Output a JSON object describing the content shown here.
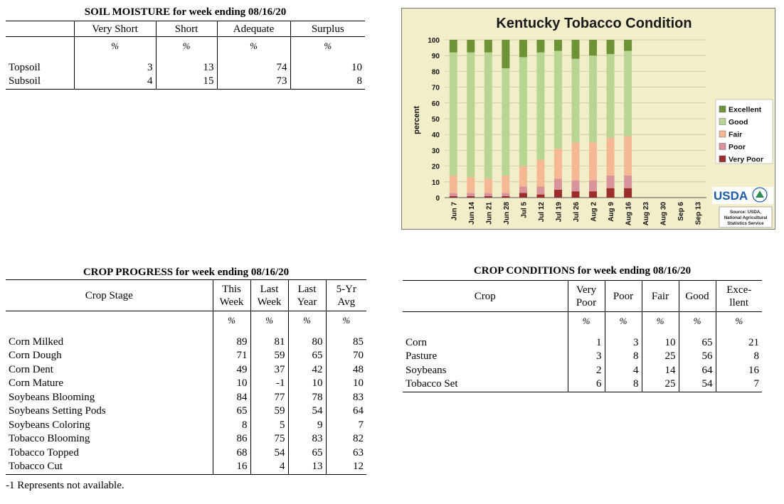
{
  "soil": {
    "title": "SOIL MOISTURE for week ending 08/16/20",
    "headers": [
      "Very Short",
      "Short",
      "Adequate",
      "Surplus"
    ],
    "unit": "%",
    "rows": [
      {
        "label": "Topsoil",
        "values": [
          "3",
          "13",
          "74",
          "10"
        ]
      },
      {
        "label": "Subsoil",
        "values": [
          "4",
          "15",
          "73",
          "8"
        ]
      }
    ]
  },
  "progress": {
    "title": "CROP PROGRESS for week ending 08/16/20",
    "stage_header": "Crop Stage",
    "headers": [
      [
        "This",
        "Week"
      ],
      [
        "Last",
        "Week"
      ],
      [
        "Last",
        "Year"
      ],
      [
        "5-Yr",
        "Avg"
      ]
    ],
    "unit": "%",
    "rows": [
      {
        "label": "Corn Milked",
        "values": [
          "89",
          "81",
          "80",
          "85"
        ]
      },
      {
        "label": "Corn Dough",
        "values": [
          "71",
          "59",
          "65",
          "70"
        ]
      },
      {
        "label": "Corn Dent",
        "values": [
          "49",
          "37",
          "42",
          "48"
        ]
      },
      {
        "label": "Corn Mature",
        "values": [
          "10",
          "-1",
          "10",
          "10"
        ]
      },
      {
        "label": "Soybeans Blooming",
        "values": [
          "84",
          "77",
          "78",
          "83"
        ]
      },
      {
        "label": "Soybeans Setting Pods",
        "values": [
          "65",
          "59",
          "54",
          "64"
        ]
      },
      {
        "label": "Soybeans Coloring",
        "values": [
          "8",
          "5",
          "9",
          "7"
        ]
      },
      {
        "label": "Tobacco Blooming",
        "values": [
          "86",
          "75",
          "83",
          "82"
        ]
      },
      {
        "label": "Tobacco Topped",
        "values": [
          "68",
          "54",
          "65",
          "63"
        ]
      },
      {
        "label": "Tobacco Cut",
        "values": [
          "16",
          "4",
          "13",
          "12"
        ]
      }
    ],
    "footnote": "-1 Represents not available."
  },
  "conditions": {
    "title": "CROP CONDITIONS for week ending 08/16/20",
    "crop_header": "Crop",
    "headers": [
      [
        "Very",
        "Poor"
      ],
      [
        "Poor"
      ],
      [
        "Fair"
      ],
      [
        "Good"
      ],
      [
        "Exce-",
        "llent"
      ]
    ],
    "unit": "%",
    "rows": [
      {
        "label": "Corn",
        "values": [
          "1",
          "3",
          "10",
          "65",
          "21"
        ]
      },
      {
        "label": "Pasture",
        "values": [
          "3",
          "8",
          "25",
          "56",
          "8"
        ]
      },
      {
        "label": "Soybeans",
        "values": [
          "2",
          "4",
          "14",
          "64",
          "16"
        ]
      },
      {
        "label": "Tobacco Set",
        "values": [
          "6",
          "8",
          "25",
          "54",
          "7"
        ]
      }
    ]
  },
  "chart_data": {
    "type": "bar",
    "stacked": true,
    "title": "Kentucky Tobacco Condition",
    "ylabel": "percent",
    "xlabel": "",
    "ylim": [
      0,
      100
    ],
    "yticks": [
      0,
      10,
      20,
      30,
      40,
      50,
      60,
      70,
      80,
      90,
      100
    ],
    "grid": true,
    "legend_position": "right",
    "categories": [
      "Jun 7",
      "Jun 14",
      "Jun 21",
      "Jun 28",
      "Jul 5",
      "Jul 12",
      "Jul 19",
      "Jul 26",
      "Aug 2",
      "Aug 9",
      "Aug 16",
      "Aug 23",
      "Aug 30",
      "Sep 6",
      "Sep 13"
    ],
    "series": [
      {
        "name": "Very Poor",
        "color": "#9b2d2d",
        "values": [
          1,
          1,
          1,
          1,
          3,
          2,
          5,
          4,
          4,
          6,
          6,
          null,
          null,
          null,
          null
        ]
      },
      {
        "name": "Poor",
        "color": "#d8949a",
        "values": [
          2,
          2,
          2,
          2,
          4,
          5,
          7,
          7,
          7,
          8,
          8,
          null,
          null,
          null,
          null
        ]
      },
      {
        "name": "Fair",
        "color": "#f4b894",
        "values": [
          11,
          10,
          9,
          11,
          13,
          17,
          19,
          24,
          24,
          24,
          25,
          null,
          null,
          null,
          null
        ]
      },
      {
        "name": "Good",
        "color": "#b9d594",
        "values": [
          78,
          79,
          80,
          68,
          69,
          68,
          62,
          53,
          55,
          53,
          54,
          null,
          null,
          null,
          null
        ]
      },
      {
        "name": "Excellent",
        "color": "#6e9236",
        "values": [
          8,
          8,
          8,
          18,
          11,
          8,
          7,
          12,
          10,
          9,
          7,
          null,
          null,
          null,
          null
        ]
      }
    ],
    "logo_text": "USDA",
    "source_lines": [
      "Source: USDA,",
      "National Agricultural",
      "Statistics Service"
    ]
  }
}
